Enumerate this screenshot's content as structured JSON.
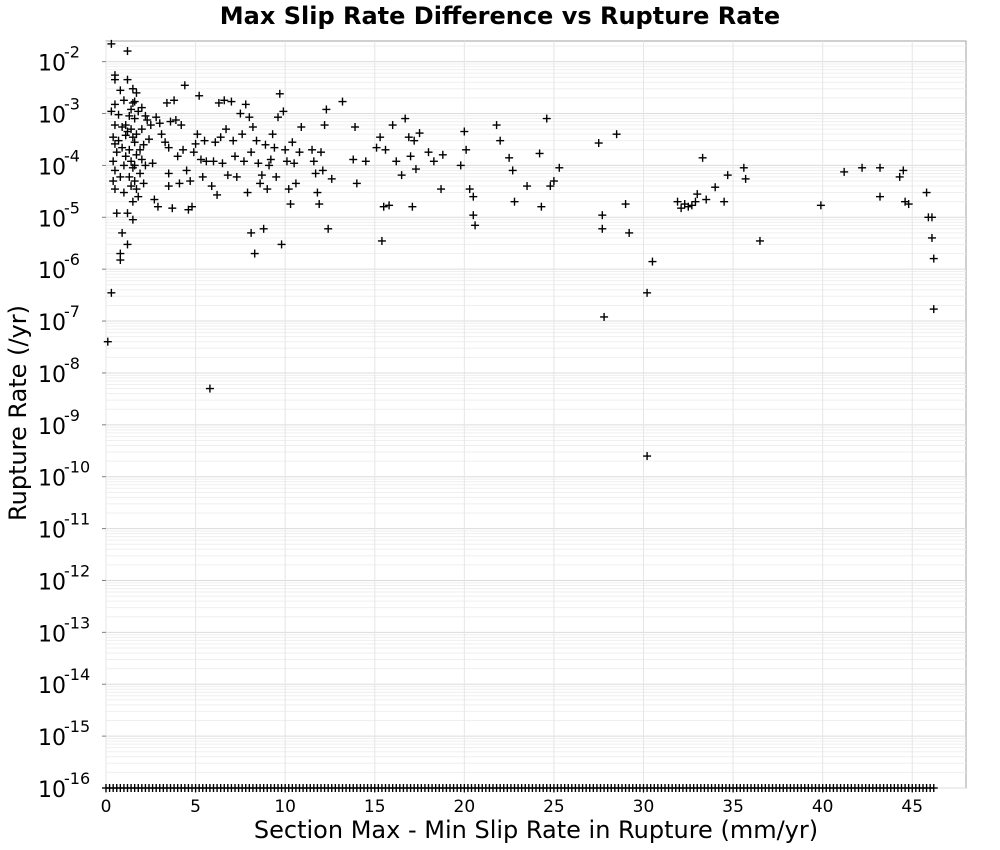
{
  "chart_data": {
    "type": "scatter",
    "title": "Max Slip Rate Difference vs Rupture Rate",
    "xlabel": "Section Max - Min Slip Rate in Rupture (mm/yr)",
    "ylabel": "Rupture Rate (/yr)",
    "xlim": [
      0,
      48
    ],
    "ylim": [
      1e-16,
      0.025
    ],
    "yscale": "log",
    "grid": true,
    "marker": "+",
    "x_ticks": [
      0,
      5,
      10,
      15,
      20,
      25,
      30,
      35,
      40,
      45
    ],
    "x_tick_labels": [
      "0",
      "5",
      "10",
      "15",
      "20",
      "25",
      "30",
      "35",
      "40",
      "45"
    ],
    "y_tick_exponents": [
      -2,
      -3,
      -4,
      -5,
      -6,
      -7,
      -8,
      -9,
      -10,
      -11,
      -12,
      -13,
      -14,
      -15,
      -16
    ],
    "y_tick_base": "10",
    "points": [
      [
        0.1,
        4e-08
      ],
      [
        0.3,
        0.022
      ],
      [
        0.3,
        3.5e-07
      ],
      [
        0.3,
        0.0011
      ],
      [
        0.4,
        0.00035
      ],
      [
        0.4,
        0.00012
      ],
      [
        0.4,
        5e-05
      ],
      [
        0.5,
        0.0055
      ],
      [
        0.5,
        0.0045
      ],
      [
        0.5,
        0.0015
      ],
      [
        0.5,
        0.0006
      ],
      [
        0.5,
        0.00026
      ],
      [
        0.5,
        8e-05
      ],
      [
        0.5,
        3.5e-05
      ],
      [
        0.6,
        0.00018
      ],
      [
        0.6,
        1.2e-05
      ],
      [
        0.7,
        0.00095
      ],
      [
        0.7,
        0.0003
      ],
      [
        0.8,
        0.0028
      ],
      [
        0.8,
        6e-05
      ],
      [
        0.8,
        2e-06
      ],
      [
        0.8,
        1.5e-06
      ],
      [
        0.9,
        0.00055
      ],
      [
        0.9,
        0.00022
      ],
      [
        0.9,
        5e-06
      ],
      [
        1.0,
        0.0018
      ],
      [
        1.0,
        0.0001
      ],
      [
        1.0,
        3e-05
      ],
      [
        1.1,
        0.0006
      ],
      [
        1.1,
        0.00038
      ],
      [
        1.1,
        0.00015
      ],
      [
        1.2,
        0.016
      ],
      [
        1.2,
        0.0045
      ],
      [
        1.2,
        0.00045
      ],
      [
        1.2,
        1.2e-05
      ],
      [
        1.2,
        3e-06
      ],
      [
        1.3,
        0.0009
      ],
      [
        1.3,
        0.0002
      ],
      [
        1.3,
        6e-05
      ],
      [
        1.4,
        0.0012
      ],
      [
        1.4,
        0.0005
      ],
      [
        1.4,
        0.00012
      ],
      [
        1.4,
        4e-05
      ],
      [
        1.5,
        0.003
      ],
      [
        1.5,
        0.0016
      ],
      [
        1.5,
        0.00035
      ],
      [
        1.5,
        9e-05
      ],
      [
        1.5,
        2e-05
      ],
      [
        1.5,
        9e-06
      ],
      [
        1.6,
        0.0017
      ],
      [
        1.6,
        0.0008
      ],
      [
        1.6,
        0.00028
      ],
      [
        1.6,
        0.0001
      ],
      [
        1.6,
        5e-05
      ],
      [
        1.7,
        0.0025
      ],
      [
        1.7,
        0.0004
      ],
      [
        1.7,
        0.00016
      ],
      [
        1.7,
        3.5e-05
      ],
      [
        1.8,
        0.0011
      ],
      [
        1.8,
        2.5e-05
      ],
      [
        1.9,
        0.0002
      ],
      [
        1.9,
        7e-05
      ],
      [
        2.0,
        0.0013
      ],
      [
        2.0,
        0.0005
      ],
      [
        2.0,
        0.00013
      ],
      [
        2.1,
        0.00025
      ],
      [
        2.1,
        4.5e-05
      ],
      [
        2.2,
        0.0009
      ],
      [
        2.2,
        0.0001
      ],
      [
        2.3,
        0.00075
      ],
      [
        2.4,
        0.00032
      ],
      [
        2.5,
        0.0006
      ],
      [
        2.6,
        0.00011
      ],
      [
        2.7,
        2.2e-05
      ],
      [
        2.8,
        0.00085
      ],
      [
        2.9,
        1.6e-05
      ],
      [
        3.0,
        0.00065
      ],
      [
        3.1,
        0.0004
      ],
      [
        3.3,
        0.00028
      ],
      [
        3.4,
        0.0016
      ],
      [
        3.5,
        0.00022
      ],
      [
        3.5,
        7e-05
      ],
      [
        3.5,
        4e-05
      ],
      [
        3.6,
        0.0007
      ],
      [
        3.7,
        1.5e-05
      ],
      [
        3.8,
        0.0018
      ],
      [
        3.9,
        0.00075
      ],
      [
        4.0,
        0.00015
      ],
      [
        4.1,
        4.5e-05
      ],
      [
        4.2,
        0.0006
      ],
      [
        4.3,
        0.0002
      ],
      [
        4.4,
        0.0035
      ],
      [
        4.5,
        8e-05
      ],
      [
        4.6,
        1.4e-05
      ],
      [
        4.7,
        5e-05
      ],
      [
        4.8,
        1.6e-05
      ],
      [
        4.9,
        0.00018
      ],
      [
        5.0,
        0.00026
      ],
      [
        5.1,
        0.0004
      ],
      [
        5.2,
        0.0022
      ],
      [
        5.3,
        0.00013
      ],
      [
        5.4,
        6e-05
      ],
      [
        5.5,
        0.0003
      ],
      [
        5.6,
        0.00012
      ],
      [
        5.8,
        5e-09
      ],
      [
        5.9,
        4e-05
      ],
      [
        6.0,
        0.00012
      ],
      [
        6.1,
        0.00028
      ],
      [
        6.2,
        2.7e-05
      ],
      [
        6.3,
        0.0016
      ],
      [
        6.4,
        0.00035
      ],
      [
        6.5,
        0.00011
      ],
      [
        6.6,
        0.0018
      ],
      [
        6.7,
        0.0005
      ],
      [
        6.8,
        6.5e-05
      ],
      [
        7.0,
        0.0017
      ],
      [
        7.1,
        0.0003
      ],
      [
        7.2,
        0.00015
      ],
      [
        7.3,
        6e-05
      ],
      [
        7.5,
        0.001
      ],
      [
        7.6,
        0.0004
      ],
      [
        7.7,
        0.00012
      ],
      [
        7.8,
        0.0015
      ],
      [
        7.9,
        3e-05
      ],
      [
        8.0,
        0.00085
      ],
      [
        8.1,
        0.00018
      ],
      [
        8.1,
        5e-06
      ],
      [
        8.2,
        0.00055
      ],
      [
        8.3,
        2e-06
      ],
      [
        8.4,
        0.0003
      ],
      [
        8.5,
        0.00011
      ],
      [
        8.6,
        4.5e-05
      ],
      [
        8.7,
        6.5e-05
      ],
      [
        8.8,
        6e-06
      ],
      [
        8.9,
        0.00025
      ],
      [
        9.0,
        3.5e-05
      ],
      [
        9.1,
        0.0001
      ],
      [
        9.2,
        0.00013
      ],
      [
        9.3,
        0.0004
      ],
      [
        9.4,
        0.00022
      ],
      [
        9.5,
        6e-05
      ],
      [
        9.6,
        0.00085
      ],
      [
        9.7,
        0.0024
      ],
      [
        9.8,
        3e-06
      ],
      [
        9.9,
        0.0011
      ],
      [
        10.0,
        0.0002
      ],
      [
        10.1,
        0.00012
      ],
      [
        10.2,
        3.5e-05
      ],
      [
        10.3,
        1.8e-05
      ],
      [
        10.4,
        0.00028
      ],
      [
        10.5,
        0.00011
      ],
      [
        10.6,
        4.5e-05
      ],
      [
        10.8,
        0.00018
      ],
      [
        10.9,
        0.00055
      ],
      [
        11.5,
        0.0002
      ],
      [
        11.6,
        0.00012
      ],
      [
        11.7,
        7e-05
      ],
      [
        11.8,
        3e-05
      ],
      [
        11.9,
        1.8e-05
      ],
      [
        12.0,
        0.00018
      ],
      [
        12.1,
        8e-05
      ],
      [
        12.2,
        0.0006
      ],
      [
        12.3,
        0.0012
      ],
      [
        12.4,
        6e-06
      ],
      [
        12.6,
        5.5e-05
      ],
      [
        13.2,
        0.0017
      ],
      [
        13.8,
        0.00013
      ],
      [
        13.9,
        0.00055
      ],
      [
        14.0,
        4.5e-05
      ],
      [
        14.5,
        0.00012
      ],
      [
        15.1,
        0.00022
      ],
      [
        15.3,
        0.00035
      ],
      [
        15.4,
        3.5e-06
      ],
      [
        15.5,
        1.6e-05
      ],
      [
        15.6,
        0.0002
      ],
      [
        15.8,
        1.7e-05
      ],
      [
        16.0,
        0.0006
      ],
      [
        16.2,
        0.00012
      ],
      [
        16.5,
        6.5e-05
      ],
      [
        16.7,
        0.0008
      ],
      [
        16.9,
        0.00035
      ],
      [
        17.0,
        0.00015
      ],
      [
        17.1,
        1.6e-05
      ],
      [
        17.2,
        0.0003
      ],
      [
        17.3,
        8.5e-05
      ],
      [
        17.5,
        0.00042
      ],
      [
        18.0,
        0.00018
      ],
      [
        18.3,
        0.00012
      ],
      [
        18.7,
        3.5e-05
      ],
      [
        18.8,
        0.00016
      ],
      [
        19.8,
        0.0001
      ],
      [
        20.0,
        0.00045
      ],
      [
        20.1,
        0.0002
      ],
      [
        20.3,
        3.5e-05
      ],
      [
        20.5,
        2.5e-05
      ],
      [
        20.5,
        1.1e-05
      ],
      [
        20.6,
        7e-06
      ],
      [
        21.8,
        0.0006
      ],
      [
        22.0,
        0.0003
      ],
      [
        22.5,
        0.00014
      ],
      [
        22.7,
        8e-05
      ],
      [
        22.8,
        2e-05
      ],
      [
        23.5,
        4e-05
      ],
      [
        24.2,
        0.00017
      ],
      [
        24.3,
        1.6e-05
      ],
      [
        24.6,
        0.0008
      ],
      [
        24.8,
        4e-05
      ],
      [
        25.0,
        5e-05
      ],
      [
        25.3,
        9e-05
      ],
      [
        27.5,
        0.00027
      ],
      [
        27.7,
        1.1e-05
      ],
      [
        27.7,
        6e-06
      ],
      [
        27.8,
        1.2e-07
      ],
      [
        28.5,
        0.0004
      ],
      [
        29.0,
        1.8e-05
      ],
      [
        29.2,
        5e-06
      ],
      [
        30.2,
        3.5e-07
      ],
      [
        30.2,
        2.5e-10
      ],
      [
        30.5,
        1.4e-06
      ],
      [
        31.9,
        2e-05
      ],
      [
        32.1,
        1.5e-05
      ],
      [
        32.3,
        1.8e-05
      ],
      [
        32.5,
        1.6e-05
      ],
      [
        32.7,
        1.7e-05
      ],
      [
        32.9,
        2e-05
      ],
      [
        33.0,
        2.8e-05
      ],
      [
        33.3,
        0.00014
      ],
      [
        33.5,
        2.2e-05
      ],
      [
        34.0,
        3.8e-05
      ],
      [
        34.5,
        2e-05
      ],
      [
        34.7,
        6.5e-05
      ],
      [
        35.6,
        9e-05
      ],
      [
        35.7,
        5.5e-05
      ],
      [
        36.5,
        3.5e-06
      ],
      [
        39.9,
        1.7e-05
      ],
      [
        41.2,
        7.5e-05
      ],
      [
        42.2,
        9e-05
      ],
      [
        43.2,
        9e-05
      ],
      [
        43.2,
        2.5e-05
      ],
      [
        44.3,
        6e-05
      ],
      [
        44.5,
        8e-05
      ],
      [
        44.6,
        2e-05
      ],
      [
        44.8,
        1.8e-05
      ],
      [
        45.8,
        3e-05
      ],
      [
        45.9,
        1e-05
      ],
      [
        46.1,
        1e-05
      ],
      [
        46.1,
        4e-06
      ],
      [
        46.2,
        1.6e-06
      ],
      [
        46.2,
        1.7e-07
      ]
    ],
    "floor_value": 1e-16,
    "floor_x_range": [
      0,
      46.2
    ],
    "floor_x_step": 0.2
  }
}
